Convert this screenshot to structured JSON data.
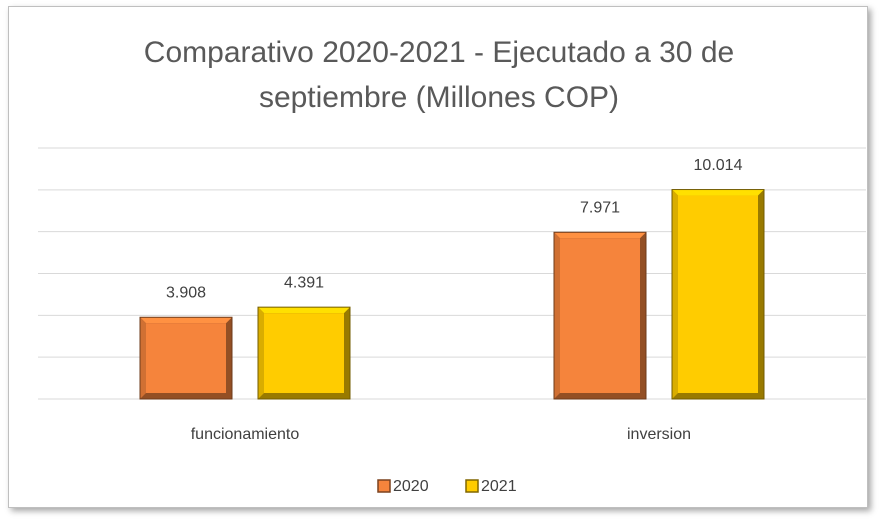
{
  "chart_data": {
    "type": "bar",
    "title": "Comparativo 2020-2021 - Ejecutado a 30 de septiembre (Millones COP)",
    "categories": [
      "funcionamiento",
      "inversion"
    ],
    "series": [
      {
        "name": "2020",
        "color": "#f5843c",
        "values": [
          3908,
          7971
        ],
        "value_labels": [
          "3.908",
          "7.971"
        ]
      },
      {
        "name": "2021",
        "color": "#ffcc00",
        "values": [
          4391,
          10014
        ],
        "value_labels": [
          "4.391",
          "10.014"
        ]
      }
    ],
    "ylim": [
      0,
      12000
    ],
    "yticks": [
      0,
      2000,
      4000,
      6000,
      8000,
      10000,
      12000
    ],
    "grid": true,
    "legend": "bottom"
  }
}
